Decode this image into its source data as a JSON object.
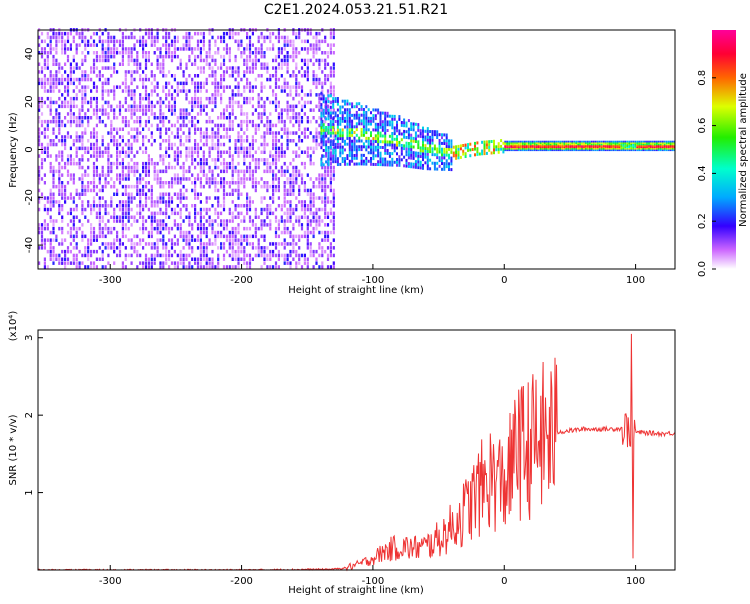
{
  "title": "C2E1.2024.053.21.51.R21",
  "colorbar": {
    "label": "Normalized spectral amplitude",
    "ticks": [
      "0.0",
      "0.2",
      "0.4",
      "0.6",
      "0.8"
    ],
    "tick_values": [
      0.0,
      0.2,
      0.4,
      0.6,
      0.8
    ],
    "range": [
      0,
      1
    ]
  },
  "chart_data": [
    {
      "type": "heatmap",
      "name": "spectrogram",
      "xlabel": "Height of straight line (km)",
      "ylabel": "Frequency (Hz)",
      "xlim": [
        -355,
        130
      ],
      "ylim": [
        -50,
        50
      ],
      "xticks": [
        -300,
        -200,
        -100,
        0,
        100
      ],
      "xtick_labels": [
        "-300",
        "-200",
        "-100",
        "0",
        "100"
      ],
      "yticks": [
        -40,
        -20,
        0,
        20,
        40
      ],
      "ytick_labels": [
        "-40",
        "-20",
        "0",
        "20",
        "40"
      ],
      "regions": [
        {
          "x": [
            -355,
            -130
          ],
          "freq": [
            -50,
            50
          ],
          "amplitude": [
            0.0,
            0.15
          ]
        },
        {
          "x": [
            -140,
            -40
          ],
          "freq": [
            -15,
            15
          ],
          "amplitude": [
            0.1,
            0.3
          ]
        },
        {
          "x": [
            -40,
            0
          ],
          "freq": [
            -2,
            4
          ],
          "amplitude": [
            0.3,
            0.9
          ]
        },
        {
          "x": [
            0,
            130
          ],
          "freq": [
            0,
            3
          ],
          "amplitude": [
            0.5,
            1.0
          ]
        }
      ],
      "ridge": {
        "x": [
          -140,
          -110,
          -80,
          -60,
          -40,
          -20,
          0,
          50,
          100,
          130
        ],
        "freq": [
          8,
          6,
          3,
          0,
          -2,
          0,
          1,
          1,
          1,
          1
        ]
      }
    },
    {
      "type": "line",
      "name": "snr",
      "xlabel": "Height of straight line (km)",
      "ylabel": "SNR (10 * v/v)",
      "y_multiplier": "(x10⁴)",
      "xlim": [
        -355,
        130
      ],
      "ylim": [
        0,
        3.1
      ],
      "xticks": [
        -300,
        -200,
        -100,
        0,
        100
      ],
      "xtick_labels": [
        "-300",
        "-200",
        "-100",
        "0",
        "100"
      ],
      "yticks": [
        1,
        2,
        3
      ],
      "ytick_labels": [
        "1",
        "2",
        "3"
      ],
      "color": "#ee3333",
      "x": [
        -355,
        -300,
        -200,
        -130,
        -120,
        -110,
        -100,
        -90,
        -80,
        -70,
        -60,
        -50,
        -40,
        -30,
        -20,
        -10,
        0,
        10,
        20,
        30,
        40,
        50,
        60,
        70,
        80,
        90,
        95,
        97,
        100,
        110,
        120,
        130
      ],
      "y": [
        0.0,
        0.0,
        0.0,
        0.01,
        0.03,
        0.08,
        0.15,
        0.25,
        0.3,
        0.28,
        0.3,
        0.4,
        0.55,
        0.75,
        1.0,
        1.2,
        1.1,
        1.5,
        1.6,
        1.7,
        1.78,
        1.8,
        1.82,
        1.82,
        1.82,
        1.83,
        1.82,
        1.8,
        1.78,
        1.77,
        1.76,
        1.77
      ],
      "spikes": [
        {
          "x": 11,
          "y": 2.33
        },
        {
          "x": 97,
          "y": 3.05
        },
        {
          "x": 98,
          "y": 0.15
        }
      ]
    }
  ]
}
